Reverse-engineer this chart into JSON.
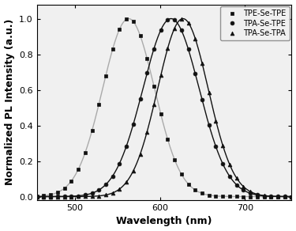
{
  "series": [
    {
      "label": "TPE-Se-TPE",
      "peak": 563,
      "fwhm": 72,
      "line_color": "#aaaaaa",
      "marker_color": "#111111",
      "marker": "s",
      "markersize": 3.5,
      "linewidth": 1.0
    },
    {
      "label": "TPA-Se-TPE",
      "peak": 613,
      "fwhm": 78,
      "line_color": "#111111",
      "marker_color": "#111111",
      "marker": "o",
      "markersize": 3.5,
      "linewidth": 1.0
    },
    {
      "label": "TPA-Se-TPA",
      "peak": 627,
      "fwhm": 70,
      "line_color": "#111111",
      "marker_color": "#111111",
      "marker": "^",
      "markersize": 3.5,
      "linewidth": 1.0
    }
  ],
  "xlim": [
    455,
    755
  ],
  "ylim": [
    -0.02,
    1.08
  ],
  "xticks": [
    500,
    600,
    700
  ],
  "yticks": [
    0.0,
    0.2,
    0.4,
    0.6,
    0.8,
    1.0
  ],
  "xlabel": "Wavelength (nm)",
  "ylabel": "Normalized PL Intensity (a.u.)",
  "background_color": "#ffffff",
  "plot_bg_color": "#f0f0f0",
  "n_markers": 38,
  "legend_fontsize": 7.0,
  "axis_fontsize": 9,
  "tick_fontsize": 8
}
